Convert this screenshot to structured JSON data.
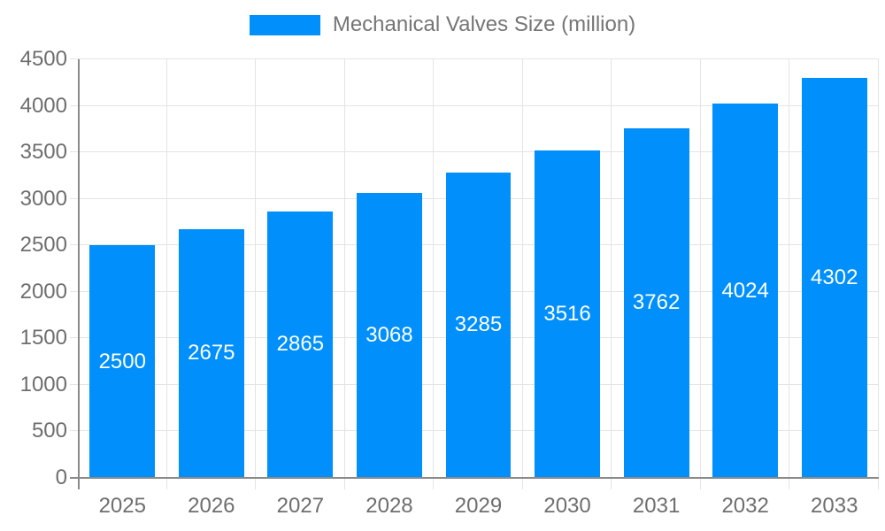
{
  "legend": {
    "label": "Mechanical Valves Size (million)"
  },
  "chart_data": {
    "type": "bar",
    "title": "Mechanical Valves Size (million)",
    "series_name": "Mechanical Valves Size (million)",
    "categories": [
      "2025",
      "2026",
      "2027",
      "2028",
      "2029",
      "2030",
      "2031",
      "2032",
      "2033"
    ],
    "values": [
      2500,
      2675,
      2865,
      3068,
      3285,
      3516,
      3762,
      4024,
      4302
    ],
    "xlabel": "",
    "ylabel": "",
    "ylim": [
      0,
      4500
    ],
    "ytick_step": 500,
    "ytick_labels": [
      "0",
      "500",
      "1000",
      "1500",
      "2000",
      "2500",
      "3000",
      "3500",
      "4000",
      "4500"
    ],
    "grid": "on",
    "legend_position": "top-center",
    "bar_label_position": "inside-center",
    "colors": {
      "bar": "#008FFB",
      "bar_label": "#FFFFFF",
      "axis_text": "#6E6E6E",
      "legend_text": "#757575",
      "gridline": "#E4E4E4",
      "axis_line": "#8A8A8A",
      "background": "#FFFFFF"
    }
  }
}
